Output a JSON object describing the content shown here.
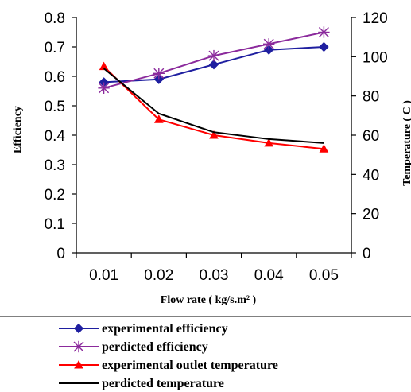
{
  "chart_data": {
    "type": "line",
    "x": [
      0.01,
      0.02,
      0.03,
      0.04,
      0.05
    ],
    "x_tick_labels": [
      "0.01",
      "0.02",
      "0.03",
      "0.04",
      "0.05"
    ],
    "xlim": [
      0.005,
      0.055
    ],
    "xlabel": "Flow rate ( kg/s.m² )",
    "ylabel_left": "Efficiency",
    "ylabel_right": "Temperature ( C )",
    "ylim_left": [
      0,
      0.8
    ],
    "ylim_right": [
      0,
      120
    ],
    "y_ticks_left": [
      "0",
      "0.1",
      "0.2",
      "0.3",
      "0.4",
      "0.5",
      "0.6",
      "0.7",
      "0.8"
    ],
    "y_ticks_right": [
      "0",
      "20",
      "40",
      "60",
      "80",
      "100",
      "120"
    ],
    "grid": false,
    "legend_position": "bottom",
    "series": [
      {
        "name": "experimental efficiency",
        "axis": "left",
        "color": "#1f1fa0",
        "marker": "diamond",
        "values": [
          0.58,
          0.59,
          0.64,
          0.69,
          0.7
        ]
      },
      {
        "name": "perdicted efficiency",
        "axis": "left",
        "color": "#8b2a9c",
        "marker": "asterisk",
        "values": [
          0.56,
          0.61,
          0.67,
          0.71,
          0.75
        ]
      },
      {
        "name": "experimental outlet temperature",
        "axis": "right",
        "color": "#ff0000",
        "marker": "triangle",
        "values": [
          95,
          68,
          60,
          56,
          53
        ]
      },
      {
        "name": "perdicted temperature",
        "axis": "right",
        "color": "#000000",
        "marker": "none",
        "values": [
          94,
          71,
          61.5,
          58,
          56
        ]
      }
    ]
  }
}
